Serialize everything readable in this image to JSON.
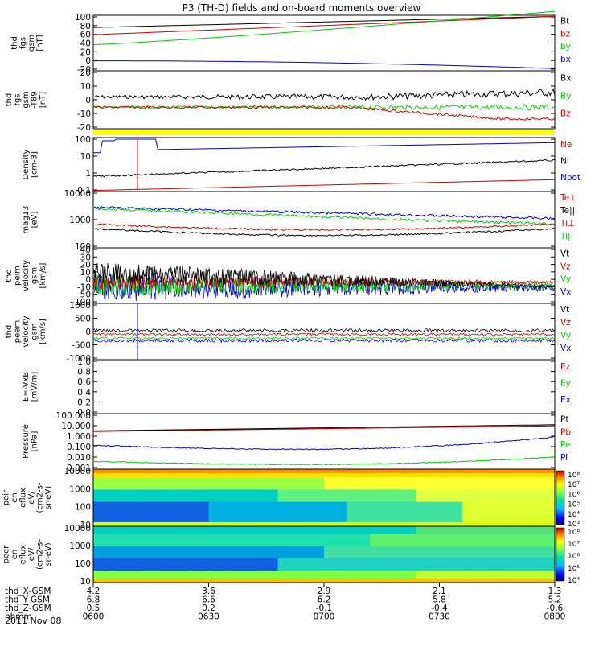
{
  "title": "P3 (TH-D) fields and on-board moments overview",
  "date_label": "2011 Nov 08",
  "colors": {
    "black": "#000000",
    "red": "#cc0000",
    "green": "#00cc00",
    "blue": "#0000cc",
    "yellow": "#ffff00"
  },
  "chart_data": [
    {
      "type": "line",
      "ylabel": [
        "thd",
        "fgs",
        "gsm",
        "[nT]"
      ],
      "yticks": [
        "100",
        "80",
        "60",
        "40",
        "20",
        "0",
        "-20"
      ],
      "ylim": [
        -20,
        100
      ],
      "legend": [
        {
          "text": "Bt",
          "color": "black"
        },
        {
          "text": "bz",
          "color": "red"
        },
        {
          "text": "by",
          "color": "green"
        },
        {
          "text": "bx",
          "color": "blue"
        }
      ]
    },
    {
      "type": "line",
      "ylabel": [
        "thd",
        "fgs",
        "gsm",
        "-T89",
        "[nT]"
      ],
      "yticks": [
        "20",
        "10",
        "0",
        "-10",
        "-20"
      ],
      "ylim": [
        -25,
        20
      ],
      "legend": [
        {
          "text": "Bx",
          "color": "black"
        },
        {
          "text": "By",
          "color": "green"
        },
        {
          "text": "Bz",
          "color": "red"
        }
      ]
    },
    {
      "type": "line",
      "ylabel": [
        "Density",
        "[cm-3]"
      ],
      "yticks": [
        "100",
        "10",
        "1",
        "0.1"
      ],
      "scale": "log",
      "legend": [
        {
          "text": "Ne",
          "color": "red"
        },
        {
          "text": "Ni",
          "color": "black"
        },
        {
          "text": "Npot",
          "color": "blue"
        }
      ]
    },
    {
      "type": "line",
      "ylabel": [
        "mag13",
        "[eV]"
      ],
      "yticks": [
        "10000",
        "1000",
        "100"
      ],
      "scale": "log",
      "legend": [
        {
          "text": "Te⊥",
          "color": "red"
        },
        {
          "text": "Te||",
          "color": "black"
        },
        {
          "text": "Ti⊥",
          "color": "red"
        },
        {
          "text": "Ti||",
          "color": "green"
        }
      ]
    },
    {
      "type": "line",
      "ylabel": [
        "thd",
        "peim",
        "velocity",
        "gsm",
        "[km/s]"
      ],
      "yticks": [
        "40",
        "30",
        "20",
        "10",
        "0",
        "-10",
        "-50",
        "-100"
      ],
      "legend": [
        {
          "text": "Vt",
          "color": "black"
        },
        {
          "text": "Vz",
          "color": "red"
        },
        {
          "text": "Vy",
          "color": "green"
        },
        {
          "text": "Vx",
          "color": "blue"
        }
      ]
    },
    {
      "type": "line",
      "ylabel": [
        "thd",
        "peem",
        "velocity",
        "gsm",
        "[km/s]"
      ],
      "yticks": [
        "1000",
        "500",
        "0",
        "-500",
        "-1000"
      ],
      "ylim": [
        -1000,
        1000
      ],
      "legend": [
        {
          "text": "Vt",
          "color": "black"
        },
        {
          "text": "Vz",
          "color": "red"
        },
        {
          "text": "Vy",
          "color": "green"
        },
        {
          "text": "Vx",
          "color": "blue"
        }
      ]
    },
    {
      "type": "line",
      "ylabel": [
        "E=-VxB",
        "[mV/m]"
      ],
      "yticks": [
        "1.0",
        "0.8",
        "0.6",
        "0.4",
        "0.2",
        "0.0"
      ],
      "ylim": [
        0,
        1
      ],
      "legend": [
        {
          "text": "Ez",
          "color": "red"
        },
        {
          "text": "Ey",
          "color": "green"
        },
        {
          "text": "Ex",
          "color": "blue"
        }
      ]
    },
    {
      "type": "line",
      "ylabel": [
        "Pressure",
        "[nPa]"
      ],
      "yticks": [
        "100.000",
        "10.000",
        "1.000",
        "0.100",
        "0.010",
        "0.001"
      ],
      "scale": "log",
      "legend": [
        {
          "text": "Pt",
          "color": "black"
        },
        {
          "text": "Pb",
          "color": "red"
        },
        {
          "text": "Pe",
          "color": "green"
        },
        {
          "text": "Pi",
          "color": "blue"
        }
      ]
    },
    {
      "type": "heatmap",
      "ylabel": [
        "thd",
        "peir",
        "en",
        "eflux",
        "eV/",
        "(cm2-s-",
        "sr-eV)"
      ],
      "yticks": [
        "10000",
        "1000",
        "100",
        "10"
      ],
      "colorbar_ticks": [
        "10⁸",
        "10⁷",
        "10⁶",
        "10⁵",
        "10⁴",
        "10³"
      ]
    },
    {
      "type": "heatmap",
      "ylabel": [
        "thd",
        "peer",
        "en",
        "eflux",
        "eV/",
        "(cm2-s-",
        "sr-eV)"
      ],
      "yticks": [
        "10000",
        "1000",
        "100",
        "10"
      ],
      "colorbar_ticks": [
        "10⁸",
        "10⁷",
        "10⁶",
        "10⁵",
        "10⁴"
      ]
    }
  ],
  "xaxis": {
    "row_labels": [
      "thd_X-GSM",
      "thd_Y-GSM",
      "thd_Z-GSM",
      "hhmm"
    ],
    "columns": [
      [
        "4.2",
        "6.8",
        "0.5",
        "0600"
      ],
      [
        "3.6",
        "6.6",
        "0.2",
        "0630"
      ],
      [
        "2.9",
        "6.2",
        "-0.1",
        "0700"
      ],
      [
        "2.1",
        "5.8",
        "-0.4",
        "0730"
      ],
      [
        "1.3",
        "5.2",
        "-0.6",
        "0800"
      ]
    ]
  }
}
